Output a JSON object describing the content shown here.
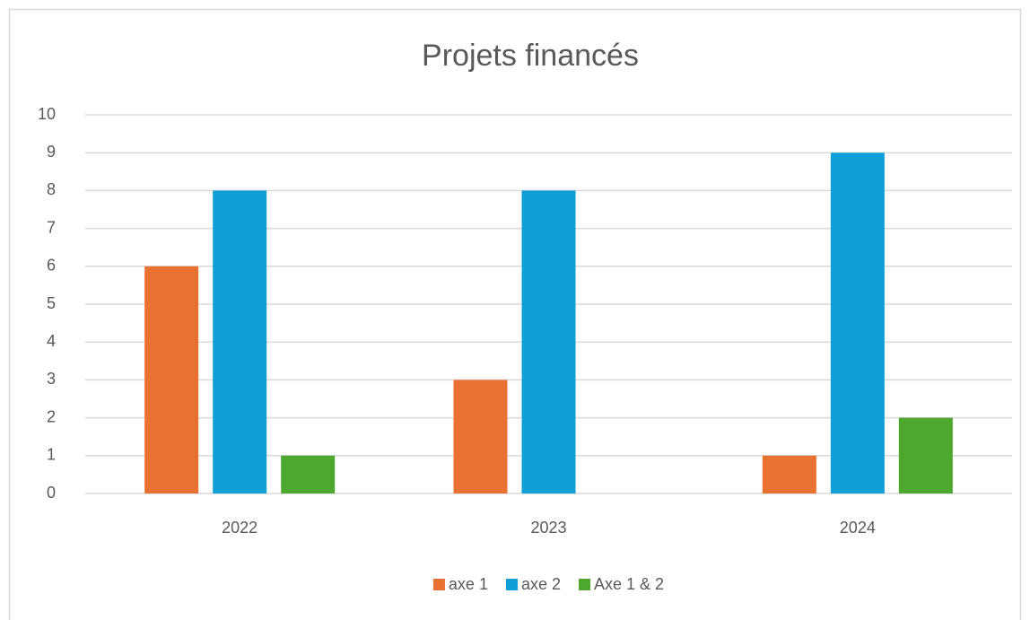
{
  "chart_data": {
    "type": "bar",
    "title": "Projets financés",
    "categories": [
      "2022",
      "2023",
      "2024"
    ],
    "series": [
      {
        "name": "axe 1",
        "color": "#e97132",
        "values": [
          6,
          3,
          1
        ]
      },
      {
        "name": "axe 2",
        "color": "#0f9ed5",
        "values": [
          8,
          8,
          9
        ]
      },
      {
        "name": "Axe 1 & 2",
        "color": "#4ea72e",
        "values": [
          1,
          0,
          2
        ]
      }
    ],
    "ylim": [
      0,
      10
    ],
    "yticks": [
      0,
      1,
      2,
      3,
      4,
      5,
      6,
      7,
      8,
      9,
      10
    ],
    "grid": true,
    "legend": "bottom"
  }
}
